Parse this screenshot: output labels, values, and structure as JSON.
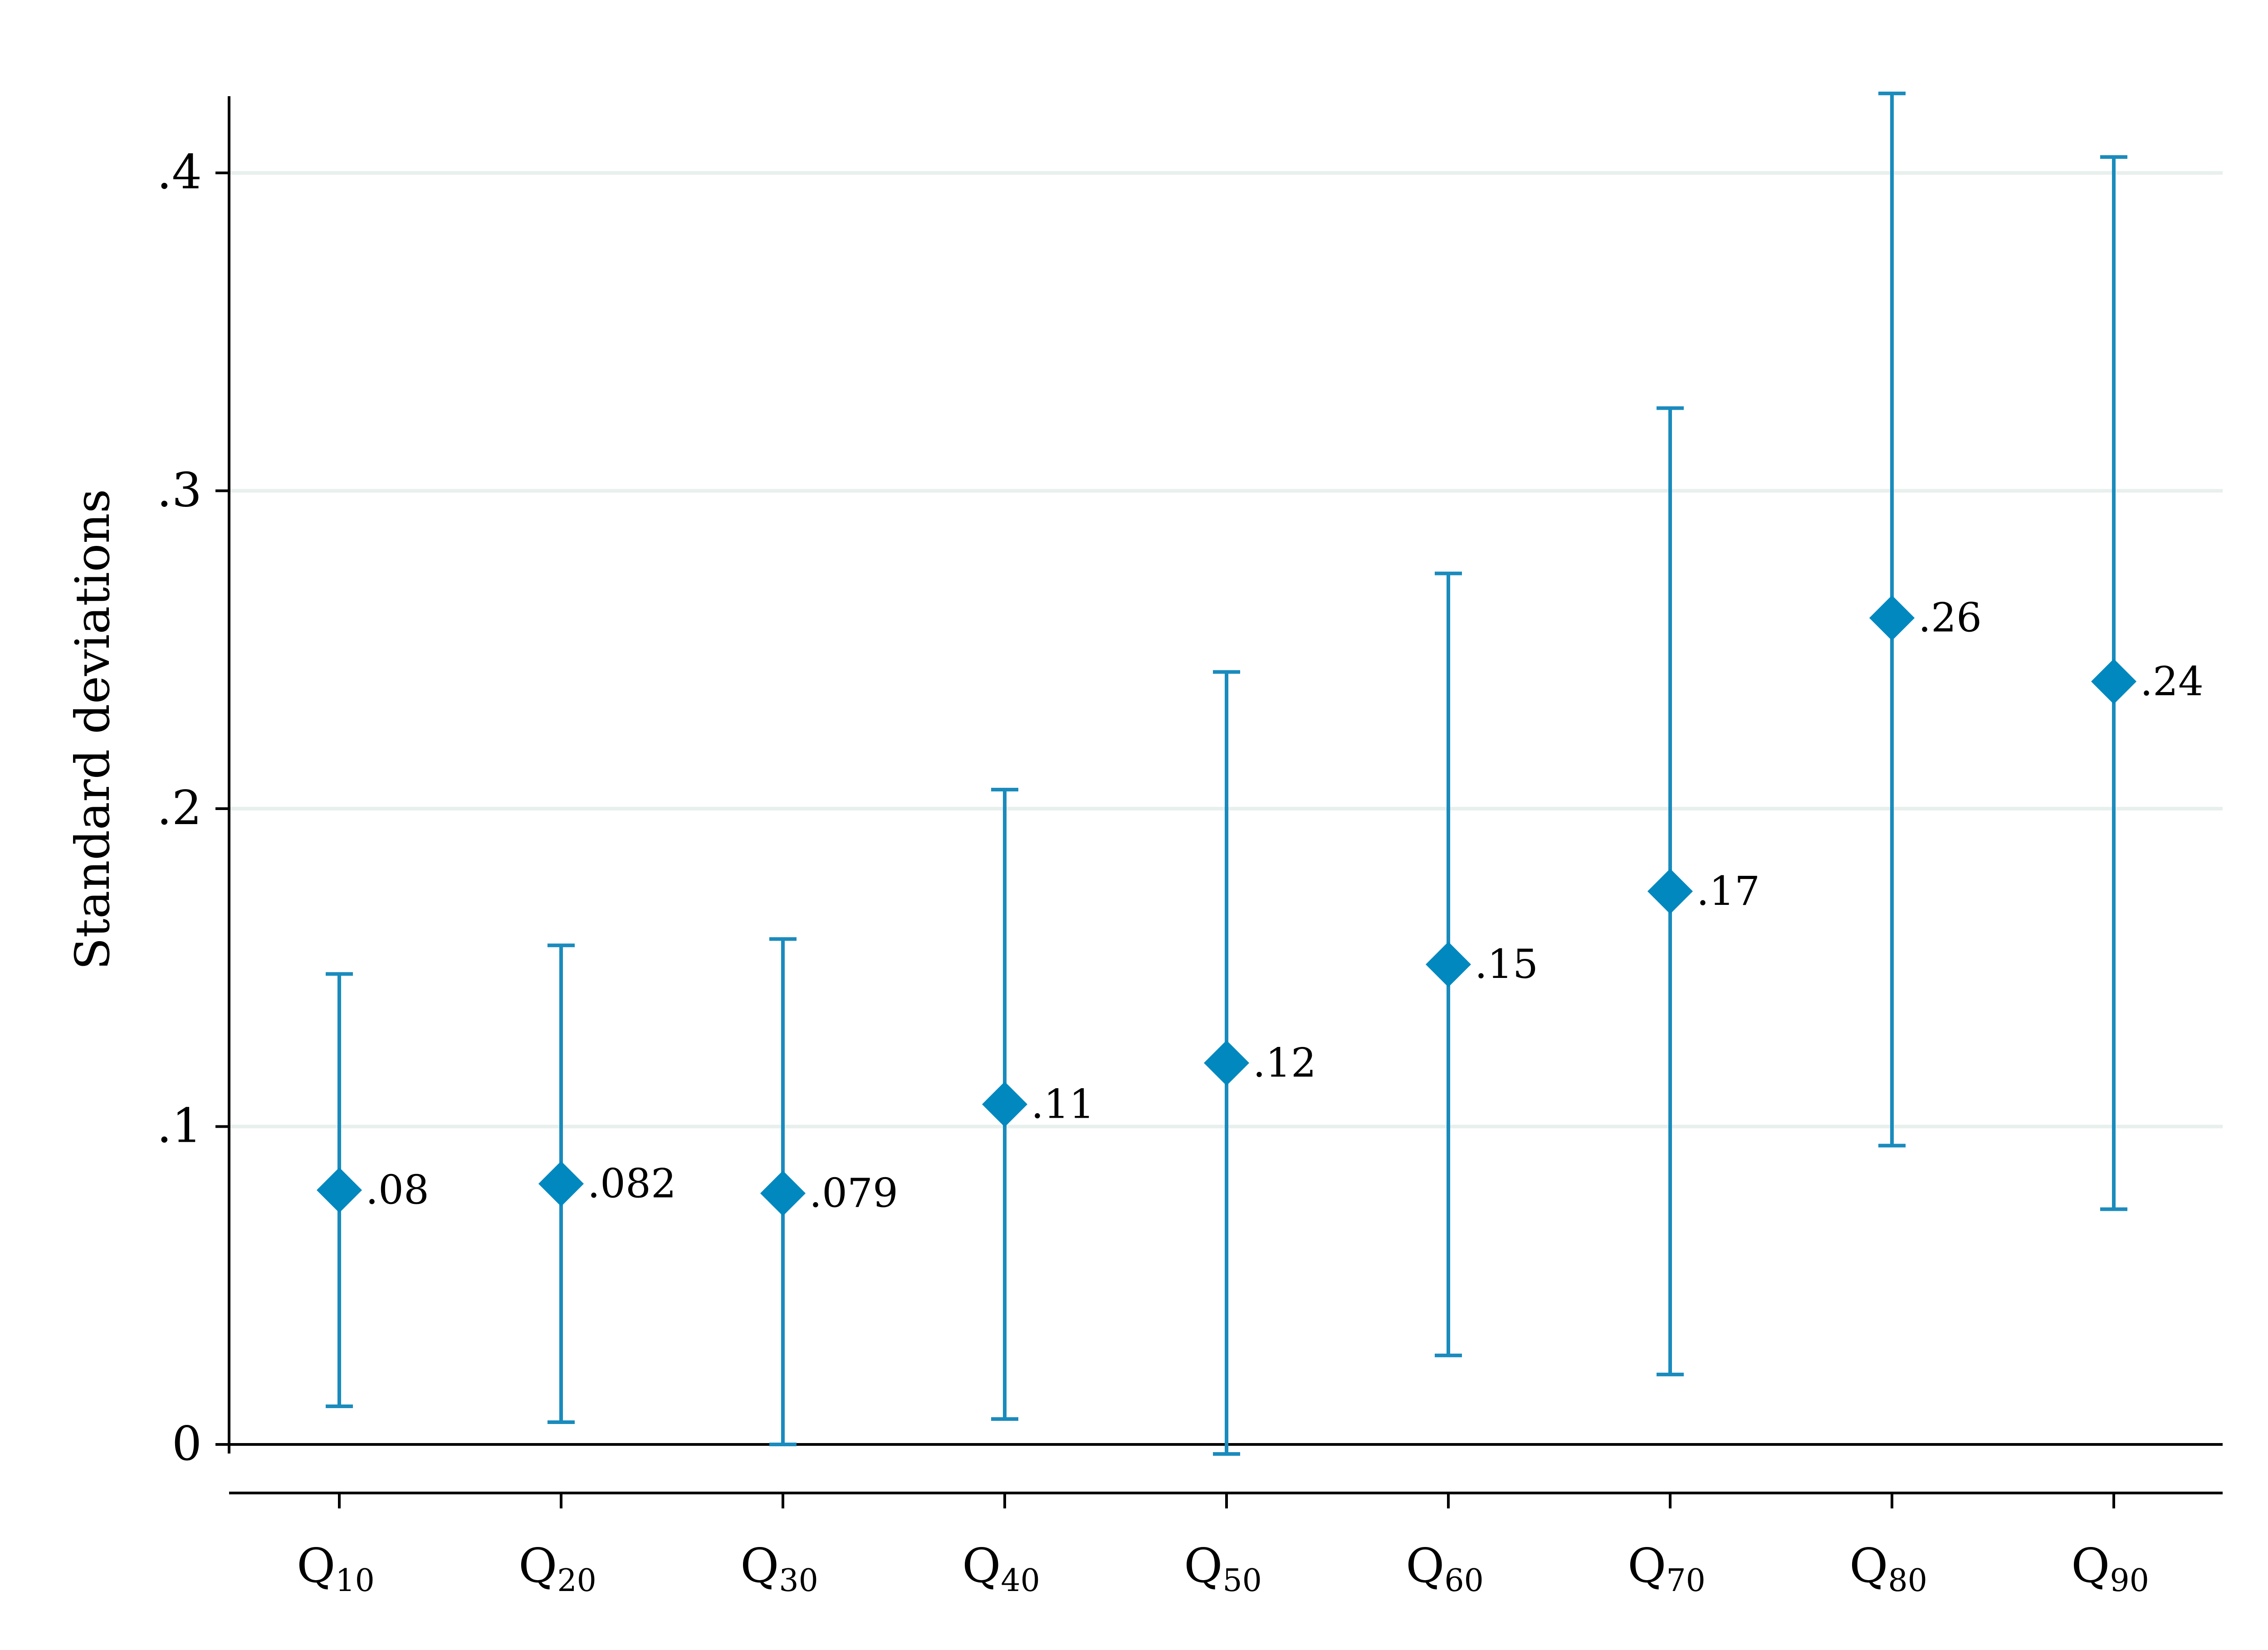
{
  "chart_data": {
    "type": "scatter",
    "ylabel": "Standard deviations",
    "ylim": [
      0,
      0.43
    ],
    "y_ticks": [
      0,
      0.1,
      0.2,
      0.3,
      0.4
    ],
    "y_tick_labels": [
      "0",
      ".1",
      ".2",
      ".3",
      ".4"
    ],
    "grid": true,
    "marker": "diamond",
    "categories": [
      {
        "main": "Q",
        "sub": "10"
      },
      {
        "main": "Q",
        "sub": "20"
      },
      {
        "main": "Q",
        "sub": "30"
      },
      {
        "main": "Q",
        "sub": "40"
      },
      {
        "main": "Q",
        "sub": "50"
      },
      {
        "main": "Q",
        "sub": "60"
      },
      {
        "main": "Q",
        "sub": "70"
      },
      {
        "main": "Q",
        "sub": "80"
      },
      {
        "main": "Q",
        "sub": "90"
      }
    ],
    "series": [
      {
        "values": [
          0.08,
          0.082,
          0.079,
          0.107,
          0.12,
          0.151,
          0.174,
          0.26,
          0.24
        ],
        "lower": [
          0.012,
          0.007,
          0.0,
          0.008,
          -0.003,
          0.028,
          0.022,
          0.094,
          0.074
        ],
        "upper": [
          0.148,
          0.157,
          0.159,
          0.206,
          0.243,
          0.274,
          0.326,
          0.425,
          0.405
        ],
        "labels": [
          ".08",
          ".082",
          ".079",
          ".11",
          ".12",
          ".15",
          ".17",
          ".26",
          ".24"
        ]
      }
    ],
    "colors": {
      "marker": "#0088BF",
      "error_bar": "#1A8BBD",
      "grid": "#E8F0EE",
      "axis": "#000000"
    }
  }
}
